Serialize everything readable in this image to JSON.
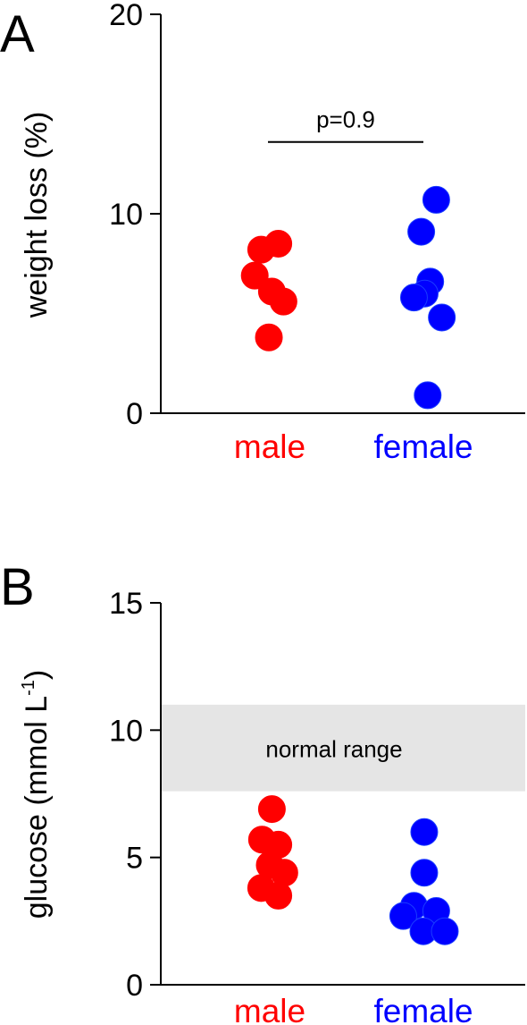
{
  "colors": {
    "male": "#ff0000",
    "female": "#0000ff",
    "axis": "#000000",
    "normal_band": "#e5e5e5"
  },
  "chart_data": [
    {
      "type": "scatter",
      "panel_label": "A",
      "ylabel": "weight loss (%)",
      "ylim": [
        0,
        20
      ],
      "yticks": [
        0,
        10,
        20
      ],
      "categories": [
        "male",
        "female"
      ],
      "series": [
        {
          "name": "male",
          "color": "#ff0000",
          "points": [
            {
              "x": "male",
              "y": 8.2,
              "jitter": -0.2
            },
            {
              "x": "male",
              "y": 8.5,
              "jitter": 0.2
            },
            {
              "x": "male",
              "y": 6.9,
              "jitter": -0.35
            },
            {
              "x": "male",
              "y": 6.1,
              "jitter": 0.05
            },
            {
              "x": "male",
              "y": 5.6,
              "jitter": 0.32
            },
            {
              "x": "male",
              "y": 3.8,
              "jitter": -0.02
            }
          ]
        },
        {
          "name": "female",
          "color": "#0000ff",
          "points": [
            {
              "x": "female",
              "y": 10.7,
              "jitter": 0.3
            },
            {
              "x": "female",
              "y": 9.1,
              "jitter": -0.05
            },
            {
              "x": "female",
              "y": 6.6,
              "jitter": 0.16
            },
            {
              "x": "female",
              "y": 6.0,
              "jitter": 0.03
            },
            {
              "x": "female",
              "y": 5.8,
              "jitter": -0.22
            },
            {
              "x": "female",
              "y": 4.8,
              "jitter": 0.43
            },
            {
              "x": "female",
              "y": 0.9,
              "jitter": 0.1
            }
          ]
        }
      ],
      "annotations": [
        {
          "text": "p=0.9",
          "type": "significance-bar",
          "x_from": "male",
          "x_to": "female",
          "y": 13.6
        }
      ]
    },
    {
      "type": "scatter",
      "panel_label": "B",
      "ylabel": "glucose (mmol L",
      "ylabel_superscript": "-1",
      "ylabel_close": ")",
      "ylim": [
        0,
        15
      ],
      "yticks": [
        0,
        5,
        10,
        15
      ],
      "categories": [
        "male",
        "female"
      ],
      "shaded_band": {
        "label": "normal range",
        "from": 7.6,
        "to": 11.0
      },
      "series": [
        {
          "name": "male",
          "color": "#ff0000",
          "points": [
            {
              "x": "male",
              "y": 6.9,
              "jitter": 0.05
            },
            {
              "x": "male",
              "y": 5.7,
              "jitter": -0.18
            },
            {
              "x": "male",
              "y": 5.5,
              "jitter": 0.2
            },
            {
              "x": "male",
              "y": 4.7,
              "jitter": 0.0
            },
            {
              "x": "male",
              "y": 4.4,
              "jitter": 0.34
            },
            {
              "x": "male",
              "y": 3.8,
              "jitter": -0.2
            },
            {
              "x": "male",
              "y": 3.5,
              "jitter": 0.2
            }
          ]
        },
        {
          "name": "female",
          "color": "#0000ff",
          "points": [
            {
              "x": "female",
              "y": 6.0,
              "jitter": 0.02
            },
            {
              "x": "female",
              "y": 4.4,
              "jitter": 0.02
            },
            {
              "x": "female",
              "y": 3.1,
              "jitter": -0.22
            },
            {
              "x": "female",
              "y": 2.9,
              "jitter": 0.3
            },
            {
              "x": "female",
              "y": 2.7,
              "jitter": -0.47
            },
            {
              "x": "female",
              "y": 2.1,
              "jitter": 0.0
            },
            {
              "x": "female",
              "y": 2.1,
              "jitter": 0.5
            }
          ]
        }
      ]
    }
  ]
}
